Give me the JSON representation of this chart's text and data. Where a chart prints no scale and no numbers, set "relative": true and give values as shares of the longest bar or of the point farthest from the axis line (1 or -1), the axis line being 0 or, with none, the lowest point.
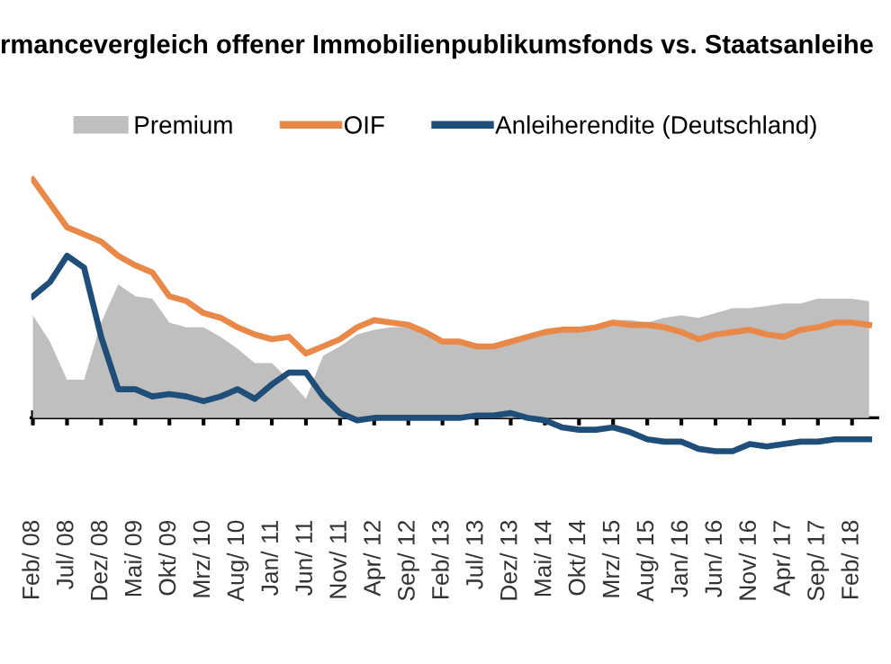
{
  "chart_data": {
    "type": "line",
    "title": "rmancevergleich offener Immobilienpublikumsfonds vs. Staatsanleihe",
    "relative": true,
    "legend": "top",
    "categories": [
      "Feb/ 08",
      null,
      "Jul/ 08",
      null,
      "Dez/ 08",
      null,
      "Mai/ 09",
      null,
      "Okt/ 09",
      null,
      "Mrz/ 10",
      null,
      "Aug/ 10",
      null,
      "Jan/ 11",
      null,
      "Jun/ 11",
      null,
      "Nov/ 11",
      null,
      "Apr/ 12",
      null,
      "Sep/ 12",
      null,
      "Feb/ 13",
      null,
      "Jul/ 13",
      null,
      "Dez/ 13",
      null,
      "Mai/ 14",
      null,
      "Okt/ 14",
      null,
      "Mrz/ 15",
      null,
      "Aug/ 15",
      null,
      "Jan/ 16",
      null,
      "Jun/ 16",
      null,
      "Nov/ 16",
      null,
      "Apr/ 17",
      null,
      "Sep/ 17",
      null,
      "Feb/ 18",
      null
    ],
    "series": [
      {
        "name": "Premium",
        "type": "area",
        "color": "#bfbfbf",
        "values": [
          0.43,
          0.32,
          0.16,
          0.16,
          0.4,
          0.56,
          0.51,
          0.5,
          0.4,
          0.38,
          0.38,
          0.34,
          0.29,
          0.23,
          0.23,
          0.16,
          0.08,
          0.26,
          0.3,
          0.35,
          0.37,
          0.38,
          0.38,
          0.36,
          0.32,
          0.32,
          0.3,
          0.3,
          0.32,
          0.34,
          0.36,
          0.37,
          0.38,
          0.38,
          0.41,
          0.41,
          0.4,
          0.42,
          0.43,
          0.42,
          0.44,
          0.46,
          0.46,
          0.47,
          0.48,
          0.48,
          0.5,
          0.5,
          0.5,
          0.49
        ]
      },
      {
        "name": "OIF",
        "color": "#e8894a",
        "values": [
          1.0,
          0.9,
          0.8,
          0.77,
          0.74,
          0.68,
          0.64,
          0.61,
          0.51,
          0.49,
          0.44,
          0.42,
          0.38,
          0.35,
          0.33,
          0.34,
          0.27,
          0.3,
          0.33,
          0.38,
          0.41,
          0.4,
          0.39,
          0.36,
          0.32,
          0.32,
          0.3,
          0.3,
          0.32,
          0.34,
          0.36,
          0.37,
          0.37,
          0.38,
          0.4,
          0.39,
          0.39,
          0.38,
          0.36,
          0.33,
          0.35,
          0.36,
          0.37,
          0.35,
          0.34,
          0.37,
          0.38,
          0.4,
          0.4,
          0.39
        ]
      },
      {
        "name": "Anleiherendite (Deutschland)",
        "color": "#1f4e79",
        "values": [
          0.51,
          0.57,
          0.68,
          0.63,
          0.34,
          0.12,
          0.12,
          0.09,
          0.1,
          0.09,
          0.07,
          0.09,
          0.12,
          0.08,
          0.14,
          0.19,
          0.19,
          0.09,
          0.02,
          -0.01,
          0.0,
          0.0,
          0.0,
          0.0,
          0.0,
          0.0,
          0.01,
          0.01,
          0.02,
          0.0,
          -0.01,
          -0.04,
          -0.05,
          -0.05,
          -0.04,
          -0.06,
          -0.09,
          -0.1,
          -0.1,
          -0.13,
          -0.14,
          -0.14,
          -0.11,
          -0.12,
          -0.11,
          -0.1,
          -0.1,
          -0.09,
          -0.09,
          -0.09
        ]
      }
    ]
  }
}
